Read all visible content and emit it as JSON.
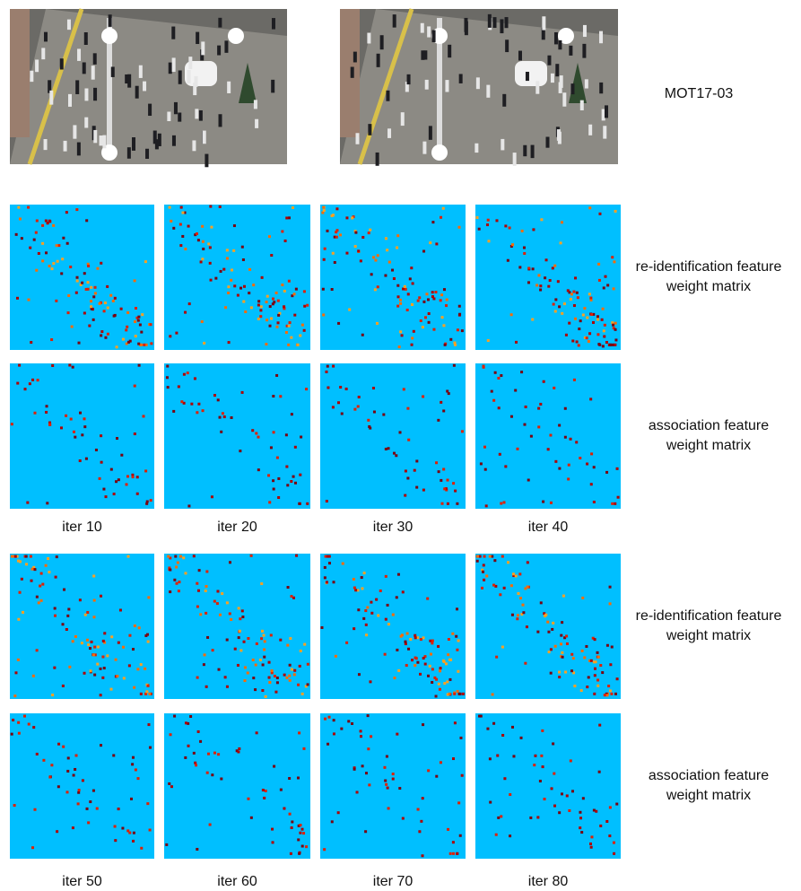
{
  "sequence_label": "MOT17-03",
  "groups": [
    {
      "rows": [
        {
          "label": [
            "re-identification feature",
            "weight matrix"
          ]
        },
        {
          "label": [
            "association feature",
            "weight matrix"
          ]
        }
      ],
      "iterations": [
        "iter 10",
        "iter 20",
        "iter 30",
        "iter 40"
      ]
    },
    {
      "rows": [
        {
          "label": [
            "re-identification feature",
            "weight matrix"
          ]
        },
        {
          "label": [
            "association feature",
            "weight matrix"
          ]
        }
      ],
      "iterations": [
        "iter 50",
        "iter 60",
        "iter 70",
        "iter 80"
      ]
    }
  ]
}
